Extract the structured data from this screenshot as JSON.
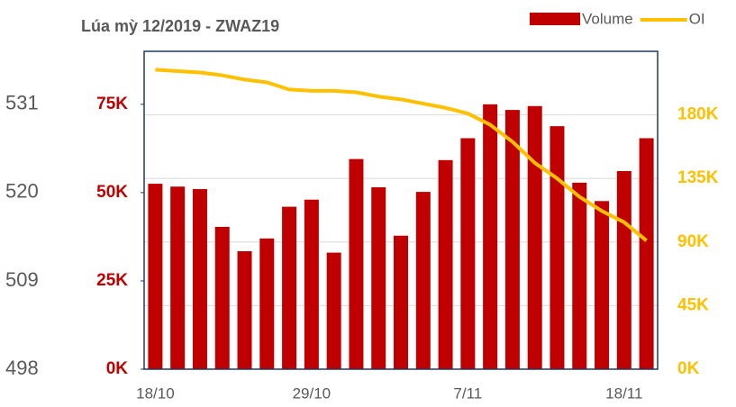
{
  "chart_data": {
    "type": "bar_line",
    "title": "Lúa mỳ 12/2019 - ZWAZ19",
    "categories": [
      "18/10",
      null,
      null,
      null,
      null,
      null,
      null,
      "29/10",
      null,
      null,
      null,
      null,
      null,
      null,
      "7/11",
      null,
      null,
      null,
      null,
      null,
      null,
      "18/11",
      null
    ],
    "series": [
      {
        "name": "Volume",
        "type": "bar",
        "color": "#c00000",
        "values": [
          52500,
          51700,
          51000,
          40300,
          33400,
          37000,
          46000,
          48000,
          33000,
          59500,
          51500,
          37800,
          50200,
          59200,
          65400,
          75000,
          73400,
          74500,
          68800,
          52800,
          47600,
          56100,
          65400
        ]
      },
      {
        "name": "OI",
        "type": "line",
        "axis": "y2",
        "color": "#ffc000",
        "values": [
          212000,
          211000,
          210000,
          208000,
          205000,
          203000,
          198000,
          197000,
          197000,
          196000,
          193000,
          191000,
          188000,
          185000,
          181000,
          173000,
          161000,
          146000,
          135000,
          122000,
          112000,
          104000,
          91000
        ]
      }
    ],
    "ylim": [
      0,
      90000
    ],
    "yticks": [
      {
        "value": 0,
        "label": "0K"
      },
      {
        "value": 25000,
        "label": "25K"
      },
      {
        "value": 50000,
        "label": "50K"
      },
      {
        "value": 75000,
        "label": "75K"
      }
    ],
    "y2lim": [
      0,
      225000
    ],
    "y2ticks": [
      {
        "value": 0,
        "label": "0K"
      },
      {
        "value": 45000,
        "label": "45K"
      },
      {
        "value": 90000,
        "label": "90K"
      },
      {
        "value": 135000,
        "label": "135K"
      },
      {
        "value": 180000,
        "label": "180K"
      }
    ],
    "y3lim": [
      498,
      537.6
    ],
    "y3ticks": [
      498,
      509,
      520,
      531
    ],
    "grid": true,
    "legend": "top-right"
  }
}
